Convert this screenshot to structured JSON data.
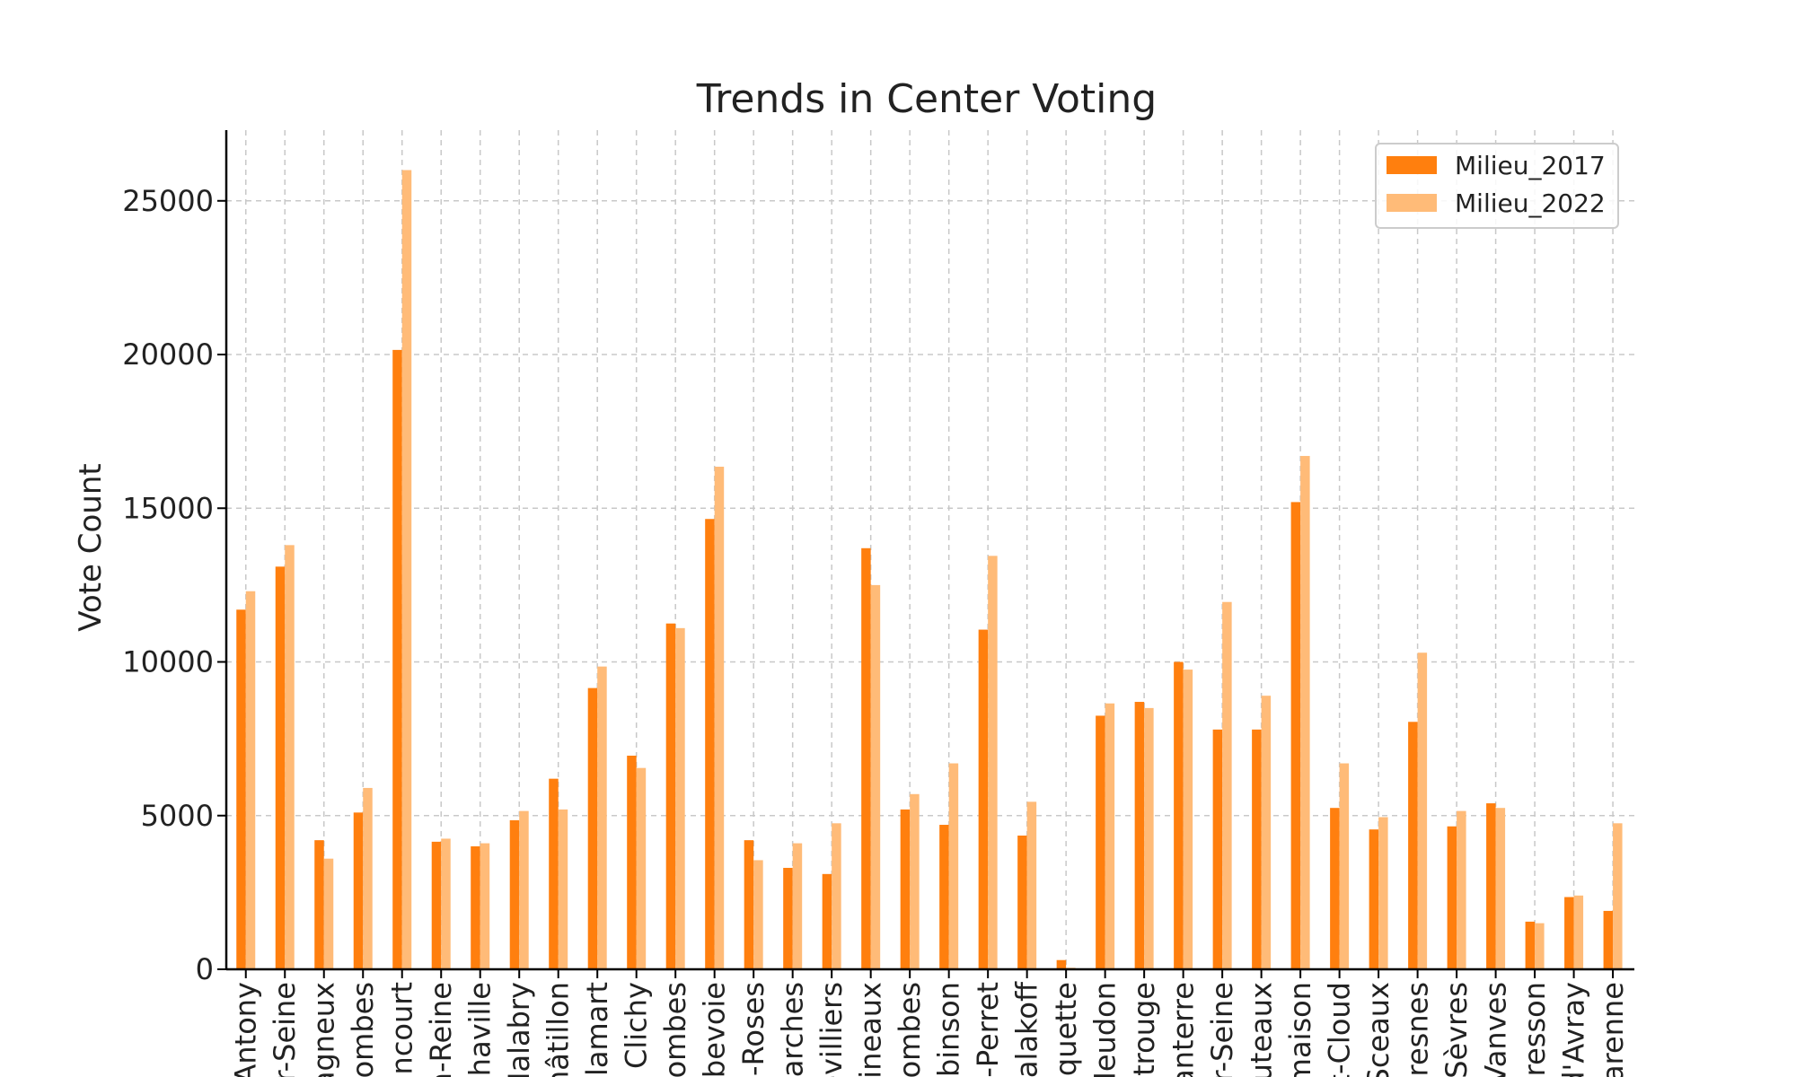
{
  "chart_data": {
    "type": "bar",
    "title": "Trends in Center Voting",
    "xlabel": "",
    "ylabel": "Vote Count",
    "ylim": [
      0,
      27300
    ],
    "yticks": [
      0,
      5000,
      10000,
      15000,
      20000,
      25000
    ],
    "grid": true,
    "legend_position": "top-right",
    "categories": [
      "Antony",
      "r-Seine",
      "agneux",
      "lombes",
      "ancourt",
      "a-Reine",
      "Chaville",
      "Malabry",
      "hâtillon",
      "Clamart",
      "Clichy",
      "lombes",
      "rbevoie",
      "x-Roses",
      "Garches",
      "evilliers",
      "lineaux",
      "lombes",
      "obinson",
      "s-Perret",
      "Malakoff",
      "oquette",
      "Meudon",
      "ntrouge",
      "anterre",
      "r-Seine",
      "Puteaux",
      "maison",
      "t-Cloud",
      "Sceaux",
      "uresnes",
      "Sèvres",
      "Vanves",
      "cresson",
      "d'Avray",
      "arenne"
    ],
    "series": [
      {
        "name": "Milieu_2017",
        "color": "#ff7f0e",
        "values": [
          11700,
          13100,
          4200,
          5100,
          20150,
          4150,
          4000,
          4850,
          6200,
          9150,
          6950,
          11250,
          14650,
          4200,
          3300,
          3100,
          13700,
          5200,
          4700,
          11050,
          4350,
          300,
          8250,
          8700,
          10000,
          7800,
          7800,
          15200,
          5250,
          4550,
          8050,
          4650,
          5400,
          1550,
          2350,
          1900
        ]
      },
      {
        "name": "Milieu_2022",
        "color": "#ffbb78",
        "values": [
          12300,
          13800,
          3600,
          5900,
          26000,
          4250,
          4100,
          5150,
          5200,
          9850,
          6550,
          11100,
          16350,
          3550,
          4100,
          4750,
          12500,
          5700,
          6700,
          13450,
          5450,
          50,
          8650,
          8500,
          9750,
          11950,
          8900,
          16700,
          6700,
          4950,
          10300,
          5150,
          5250,
          1500,
          2400,
          4750
        ]
      }
    ]
  }
}
